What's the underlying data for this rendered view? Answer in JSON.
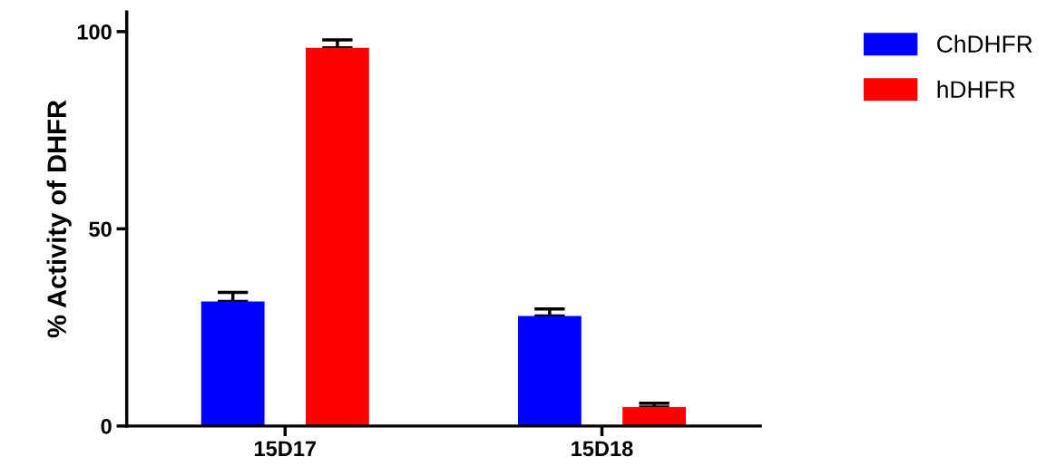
{
  "chart_data": {
    "type": "bar",
    "ylabel": "% Activity of DHFR",
    "categories": [
      "15D17",
      "15D18"
    ],
    "series": [
      {
        "name": "ChDHFR",
        "color": "#0000ff",
        "values": [
          31.6,
          27.9
        ],
        "errors": [
          [
            31.6,
            33.9
          ],
          [
            27.9,
            29.7
          ]
        ]
      },
      {
        "name": "hDHFR",
        "color": "#ff0000",
        "values": [
          95.9,
          4.8
        ],
        "errors": [
          [
            95.9,
            97.9
          ],
          [
            4.8,
            5.8
          ]
        ]
      }
    ],
    "ylim": [
      0,
      105
    ],
    "yticks": [
      0,
      50,
      100
    ],
    "grid": false,
    "legend": "top right"
  }
}
